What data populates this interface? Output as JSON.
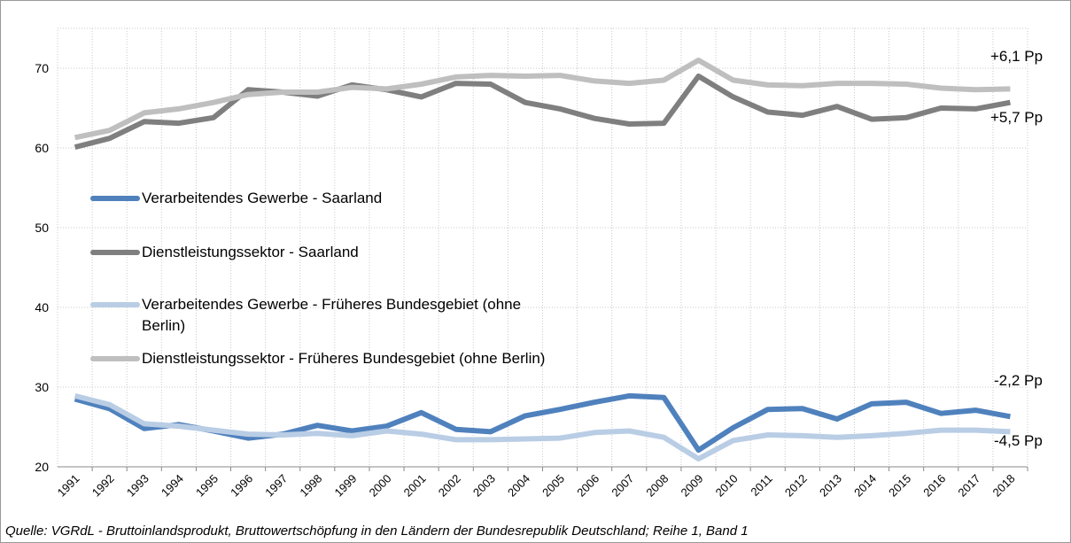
{
  "chart_data": {
    "type": "line",
    "categories": [
      "1991",
      "1992",
      "1993",
      "1994",
      "1995",
      "1996",
      "1997",
      "1998",
      "1999",
      "2000",
      "2001",
      "2002",
      "2003",
      "2004",
      "2005",
      "2006",
      "2007",
      "2008",
      "2009",
      "2010",
      "2011",
      "2012",
      "2013",
      "2014",
      "2015",
      "2016",
      "2017",
      "2018"
    ],
    "series": [
      {
        "name": "Verarbeitendes Gewerbe - Saarland",
        "color": "#4f81bd",
        "values": [
          28.5,
          27.3,
          24.8,
          25.3,
          24.5,
          23.6,
          24.1,
          25.2,
          24.5,
          25.1,
          26.8,
          24.7,
          24.4,
          26.4,
          27.2,
          28.1,
          28.9,
          28.7,
          22.1,
          24.9,
          27.2,
          27.3,
          26.0,
          27.9,
          28.1,
          26.7,
          27.1,
          26.3
        ]
      },
      {
        "name": "Dienstleistungssektor - Saarland",
        "color": "#7f7f7f",
        "values": [
          60.1,
          61.2,
          63.3,
          63.1,
          63.8,
          67.3,
          67.0,
          66.5,
          67.9,
          67.3,
          66.4,
          68.1,
          68.0,
          65.7,
          64.9,
          63.7,
          63.0,
          63.1,
          69.0,
          66.4,
          64.5,
          64.1,
          65.2,
          63.6,
          63.8,
          65.0,
          64.9,
          65.7
        ]
      },
      {
        "name": "Verarbeitendes Gewerbe - Früheres Bundesgebiet (ohne Berlin)",
        "color": "#b9cde5",
        "values": [
          28.9,
          27.8,
          25.4,
          25.1,
          24.6,
          24.1,
          24.0,
          24.2,
          23.9,
          24.5,
          24.1,
          23.4,
          23.4,
          23.5,
          23.6,
          24.3,
          24.5,
          23.7,
          21.0,
          23.3,
          24.0,
          23.9,
          23.7,
          23.9,
          24.2,
          24.6,
          24.6,
          24.4
        ]
      },
      {
        "name": "Dienstleistungssektor - Früheres Bundesgebiet (ohne Berlin)",
        "color": "#bfbfbf",
        "values": [
          61.3,
          62.2,
          64.4,
          64.9,
          65.7,
          66.7,
          67.0,
          67.0,
          67.6,
          67.4,
          68.0,
          68.9,
          69.1,
          69.0,
          69.1,
          68.4,
          68.1,
          68.5,
          71.0,
          68.5,
          67.9,
          67.8,
          68.1,
          68.1,
          68.0,
          67.5,
          67.3,
          67.4
        ]
      }
    ],
    "ylim": [
      20,
      75
    ],
    "yticks": [
      20,
      30,
      40,
      50,
      60,
      70
    ],
    "grid": true,
    "annotations": [
      "+6,1 Pp",
      "+5,7 Pp",
      "-2,2 Pp",
      "-4,5 Pp"
    ],
    "source": "Quelle: VGRdL - Bruttoinlandsprodukt, Bruttowertschöpfung in den Ländern der Bundesrepublik Deutschland; Reihe 1, Band 1"
  }
}
